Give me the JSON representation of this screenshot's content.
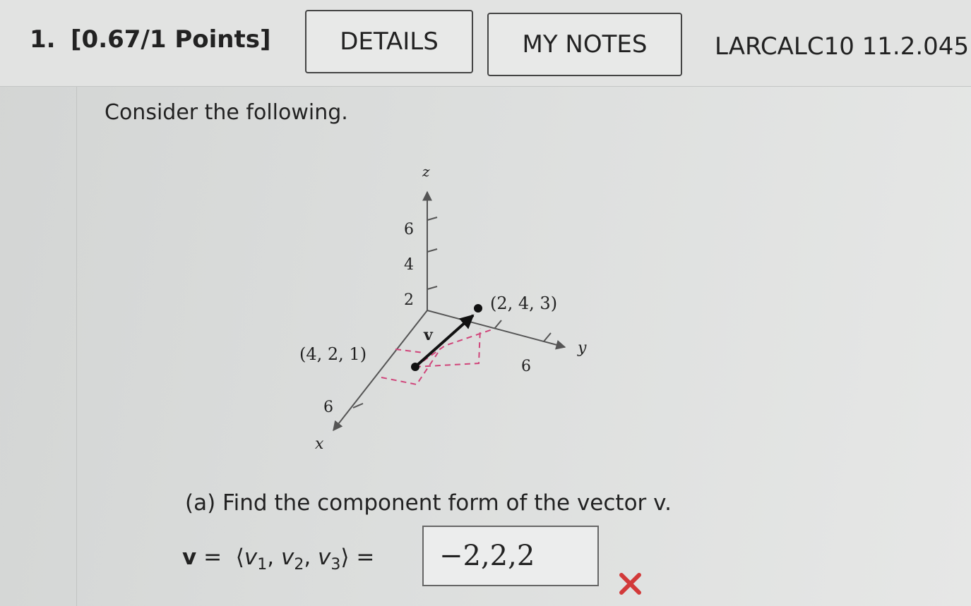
{
  "header": {
    "number": "1.",
    "points": "[0.67/1 Points]",
    "buttons": [
      "DETAILS",
      "MY NOTES"
    ],
    "code": "LARCALC10 11.2.045"
  },
  "question": {
    "prompt": "Consider the following.",
    "figure": {
      "z_axis": "z",
      "y_axis": "y",
      "x_axis": "x",
      "z_ticks": [
        "6",
        "4",
        "2"
      ],
      "y_tick": "6",
      "x_tick": "6",
      "point_end": "(2, 4, 3)",
      "point_start": "(4, 2, 1)",
      "vector": "v"
    },
    "part_a": {
      "text": "(a) Find the component form of the vector v.",
      "lhs": "v",
      "equals": "=",
      "open": "⟨",
      "close": "⟩",
      "components": [
        {
          "base": "v",
          "sub": "1"
        },
        {
          "base": "v",
          "sub": "2"
        },
        {
          "base": "v",
          "sub": "3"
        }
      ],
      "answer": "−2,2,2"
    }
  }
}
